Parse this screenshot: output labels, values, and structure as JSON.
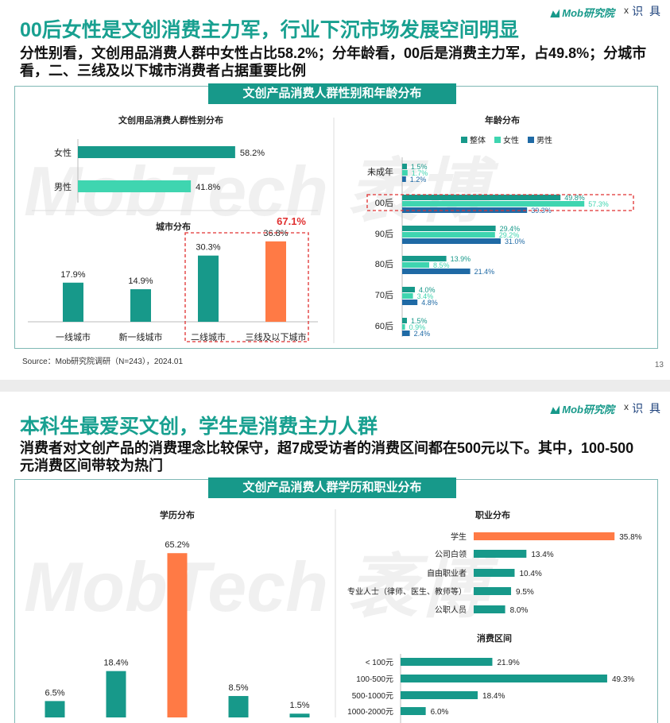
{
  "colors": {
    "teal": "#17998a",
    "mint": "#3fd5b0",
    "blue": "#1f6aa5",
    "orange": "#ff7a45",
    "red_dash": "#e03030"
  },
  "brand": {
    "name": "Mob研究院",
    "x": "x",
    "partner": "识 具"
  },
  "slide1": {
    "title": "00后女性是文创消费主力军，行业下沉市场发展空间明显",
    "subtitle": "分性别看，文创用品消费人群中女性占比58.2%；分年龄看，00后是消费主力军，占49.8%；分城市看，二、三线及以下城市消费者占据重要比例",
    "banner": "文创产品消费人群性别和年龄分布",
    "watermark": "MobTech 袤博",
    "source": "Source：Mob研究院调研（N=243），2024.01",
    "page_number": "13"
  },
  "slide2": {
    "title": "本科生最爱买文创，学生是消费主力人群",
    "subtitle": "消费者对文创产品的消费理念比较保守，超7成受访者的消费区间都在500元以下。其中，100-500元消费区间带较为热门",
    "banner": "文创产品消费人群学历和职业分布",
    "watermark": "MobTech 袤博"
  },
  "chart_data": [
    {
      "id": "gender",
      "type": "bar",
      "orientation": "horizontal",
      "title": "文创用品消费人群性别分布",
      "categories": [
        "女性",
        "男性"
      ],
      "values": [
        58.2,
        41.8
      ],
      "labels": [
        "58.2%",
        "41.8%"
      ],
      "colors": [
        "#17998a",
        "#3fd5b0"
      ],
      "xlim": [
        0,
        100
      ]
    },
    {
      "id": "city",
      "type": "bar",
      "title": "城市分布",
      "categories": [
        "一线城市",
        "新一线城市",
        "二线城市",
        "三线及以下城市"
      ],
      "values": [
        17.9,
        14.9,
        30.3,
        36.8
      ],
      "labels": [
        "17.9%",
        "14.9%",
        "30.3%",
        "36.8%"
      ],
      "colors": [
        "#17998a",
        "#17998a",
        "#17998a",
        "#ff7a45"
      ],
      "annotation": "67.1%",
      "highlight_categories": [
        "二线城市",
        "三线及以下城市"
      ],
      "ylim": [
        0,
        40
      ]
    },
    {
      "id": "age",
      "type": "bar",
      "orientation": "horizontal",
      "title": "年龄分布",
      "categories": [
        "未成年",
        "00后",
        "90后",
        "80后",
        "70后",
        "60后"
      ],
      "series": [
        {
          "name": "整体",
          "color": "#17998a",
          "values": [
            1.5,
            49.8,
            29.4,
            13.9,
            4.0,
            1.5
          ],
          "labels": [
            "1.5%",
            "49.8%",
            "29.4%",
            "13.9%",
            "4.0%",
            "1.5%"
          ]
        },
        {
          "name": "女性",
          "color": "#3fd5b0",
          "values": [
            1.7,
            57.3,
            29.2,
            8.5,
            3.4,
            0.9
          ],
          "labels": [
            "1.7%",
            "57.3%",
            "29.2%",
            "8.5%",
            "3.4%",
            "0.9%"
          ]
        },
        {
          "name": "男性",
          "color": "#1f6aa5",
          "values": [
            1.2,
            39.3,
            31.0,
            21.4,
            4.8,
            2.4
          ],
          "labels": [
            "1.2%",
            "39.3%",
            "31.0%",
            "21.4%",
            "4.8%",
            "2.4%"
          ]
        }
      ],
      "legend": "top",
      "highlight_category": "00后",
      "xlim": [
        0,
        60
      ]
    },
    {
      "id": "education",
      "type": "bar",
      "title": "学历分布",
      "categories": [
        "",
        "",
        "",
        "",
        ""
      ],
      "values": [
        6.5,
        18.4,
        65.2,
        8.5,
        1.5
      ],
      "labels": [
        "6.5%",
        "18.4%",
        "65.2%",
        "8.5%",
        "1.5%"
      ],
      "colors": [
        "#17998a",
        "#17998a",
        "#ff7a45",
        "#17998a",
        "#17998a"
      ],
      "ylim": [
        0,
        70
      ]
    },
    {
      "id": "occupation",
      "type": "bar",
      "orientation": "horizontal",
      "title": "职业分布",
      "categories": [
        "学生",
        "公司白领",
        "自由职业者",
        "专业人士（律师、医生、教师等）",
        "公职人员"
      ],
      "values": [
        35.8,
        13.4,
        10.4,
        9.5,
        8.0
      ],
      "labels": [
        "35.8%",
        "13.4%",
        "10.4%",
        "9.5%",
        "8.0%"
      ],
      "colors": [
        "#ff7a45",
        "#17998a",
        "#17998a",
        "#17998a",
        "#17998a"
      ],
      "xlim": [
        0,
        40
      ]
    },
    {
      "id": "spending",
      "type": "bar",
      "orientation": "horizontal",
      "title": "消费区间",
      "categories": [
        "< 100元",
        "100-500元",
        "500-1000元",
        "1000-2000元"
      ],
      "values": [
        21.9,
        49.3,
        18.4,
        6.0
      ],
      "labels": [
        "21.9%",
        "49.3%",
        "18.4%",
        "6.0%"
      ],
      "colors": [
        "#17998a",
        "#17998a",
        "#17998a",
        "#17998a"
      ],
      "xlim": [
        0,
        55
      ]
    }
  ]
}
